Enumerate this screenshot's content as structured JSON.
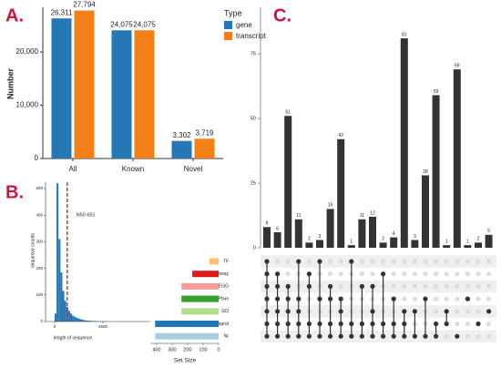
{
  "chart_data": [
    {
      "type": "bar",
      "panel_label": "A.",
      "y_label": "Number",
      "legend_title": "Type",
      "categories": [
        "All",
        "Known",
        "Novel"
      ],
      "series": [
        {
          "name": "gene",
          "color": "#2577b5",
          "values": [
            26311,
            24075,
            3302
          ],
          "value_labels": [
            "26,311",
            "24,075",
            "3,302"
          ]
        },
        {
          "name": "transcript",
          "color": "#f57f17",
          "values": [
            27794,
            24075,
            3719
          ],
          "value_labels": [
            "27,794",
            "24,075",
            "3,719"
          ]
        }
      ],
      "ylim": [
        0,
        28400
      ],
      "yticks": [
        0,
        {
          "value": 10000,
          "label": "10,000"
        },
        {
          "value": 20000,
          "label": "20,000"
        }
      ]
    },
    {
      "type": "histogram",
      "panel_label": "B.",
      "x_label": "length of sequence",
      "y_label": "sequence counts",
      "bins": [
        0,
        100,
        200,
        300,
        400,
        500,
        600,
        700,
        800,
        900,
        1000,
        1100,
        1200,
        1300,
        1400,
        1500,
        1600,
        1700,
        1800,
        1900,
        2000,
        2100,
        2200,
        2300,
        2400,
        2500,
        2600,
        2700,
        2800,
        2900,
        3000
      ],
      "counts": [
        30,
        520,
        310,
        185,
        115,
        78,
        55,
        40,
        30,
        22,
        18,
        14,
        11,
        9,
        7,
        5,
        4,
        3,
        3,
        2,
        2,
        2,
        1,
        1,
        1,
        1,
        1,
        0,
        1,
        0
      ],
      "color": "#2577b5",
      "xlim": [
        -470,
        4950
      ],
      "ylim": [
        0,
        524
      ],
      "xticks": [
        0,
        2500
      ],
      "yticks": [
        0,
        100,
        200,
        300,
        400,
        500
      ],
      "annotation": "N50 651",
      "reference_line": {
        "value": 651,
        "color": "#e41a1c"
      }
    },
    {
      "type": "upset",
      "panel_label": "C.",
      "color": "#333333",
      "values": [
        8,
        6,
        51,
        11,
        2,
        3,
        15,
        42,
        1,
        11,
        12,
        2,
        4,
        81,
        3,
        28,
        59,
        1,
        69,
        1,
        2,
        5
      ],
      "ylim": [
        0,
        93
      ],
      "yticks": [
        0,
        25,
        50,
        75
      ],
      "sets": [
        {
          "name": "TF",
          "size": 60,
          "color": "#fdbf6f"
        },
        {
          "name": "Pathway",
          "size": 170,
          "color": "#e31a1c"
        },
        {
          "name": "KEGG",
          "size": 240,
          "color": "#fb9a99"
        },
        {
          "name": "Pfam",
          "size": 240,
          "color": "#33a02c"
        },
        {
          "name": "GO",
          "size": 240,
          "color": "#b2df8a"
        },
        {
          "name": "Uniprot",
          "size": 410,
          "color": "#1f78b4"
        },
        {
          "name": "Nr",
          "size": 410,
          "color": "#a6cee3"
        }
      ],
      "memberships": [
        [
          0,
          1,
          2,
          3,
          4,
          5,
          6
        ],
        [
          1,
          2,
          3,
          4,
          5,
          6
        ],
        [
          2,
          3,
          4,
          5,
          6
        ],
        [
          0,
          3,
          4,
          5,
          6
        ],
        [
          1,
          2,
          5,
          6
        ],
        [
          0,
          3,
          5,
          6
        ],
        [
          2,
          3,
          5,
          6
        ],
        [
          3,
          4,
          5,
          6
        ],
        [
          0,
          5,
          6
        ],
        [
          2,
          5,
          6
        ],
        [
          2,
          4,
          5,
          6
        ],
        [
          1,
          5,
          6
        ],
        [
          3,
          5,
          6
        ],
        [
          4,
          5,
          6
        ],
        [
          4,
          6
        ],
        [
          3,
          6
        ],
        [
          5,
          6
        ],
        [
          4,
          5
        ],
        [
          6
        ],
        [
          3
        ],
        [
          5
        ],
        [
          4
        ]
      ],
      "set_size_label": "Set Size",
      "set_size_xlim": [
        0,
        441
      ],
      "set_size_ticks": [
        400,
        300,
        200,
        100,
        0
      ]
    }
  ]
}
